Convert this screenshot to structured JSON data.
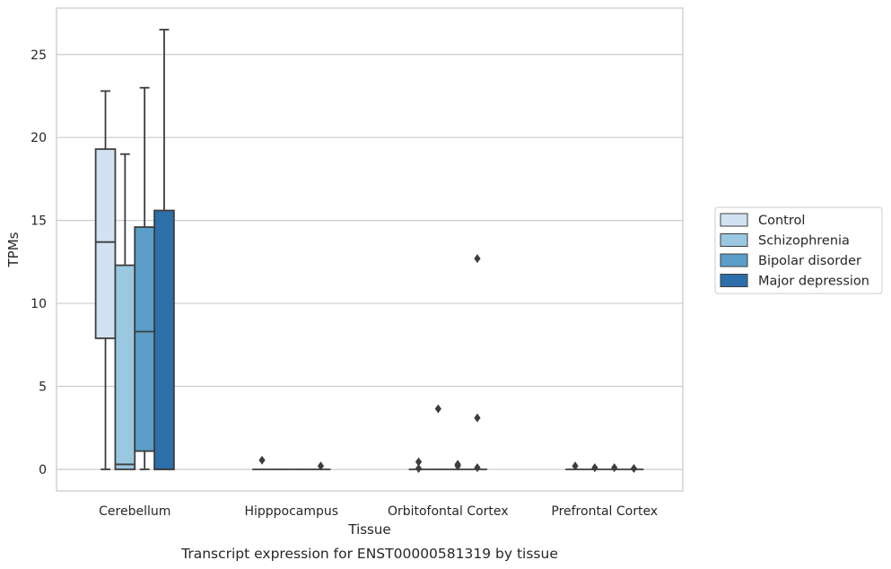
{
  "chart_data": {
    "type": "box",
    "caption": "Transcript expression for ENST00000581319 by tissue",
    "xlabel": "Tissue",
    "ylabel": "TPMs",
    "ylim": [
      -1.3,
      27.8
    ],
    "yticks": [
      0,
      5,
      10,
      15,
      20,
      25
    ],
    "grid": "horizontal",
    "legend_position": "right",
    "categories": [
      "Cerebellum",
      "Hipppocampus",
      "Orbitofontal Cortex",
      "Prefrontal Cortex"
    ],
    "series": [
      {
        "name": "Control",
        "color": "#d2e2f2",
        "boxes": [
          {
            "category": "Cerebellum",
            "whisker_low": 0.0,
            "q1": 7.9,
            "median": 13.7,
            "q3": 19.3,
            "whisker_high": 22.8,
            "outliers": []
          },
          {
            "category": "Hipppocampus",
            "whisker_low": 0.0,
            "q1": 0.0,
            "median": 0.0,
            "q3": 0.0,
            "whisker_high": 0.0,
            "outliers": [
              0.55
            ]
          },
          {
            "category": "Orbitofontal Cortex",
            "whisker_low": 0.0,
            "q1": 0.0,
            "median": 0.0,
            "q3": 0.0,
            "whisker_high": 0.0,
            "outliers": [
              0.45,
              0.05
            ]
          },
          {
            "category": "Prefrontal Cortex",
            "whisker_low": 0.0,
            "q1": 0.0,
            "median": 0.0,
            "q3": 0.0,
            "whisker_high": 0.0,
            "outliers": [
              0.2
            ]
          }
        ]
      },
      {
        "name": "Schizophrenia",
        "color": "#9ac8e0",
        "boxes": [
          {
            "category": "Cerebellum",
            "whisker_low": 0.0,
            "q1": 0.0,
            "median": 0.3,
            "q3": 12.3,
            "whisker_high": 19.0,
            "outliers": []
          },
          {
            "category": "Hipppocampus",
            "whisker_low": 0.0,
            "q1": 0.0,
            "median": 0.0,
            "q3": 0.0,
            "whisker_high": 0.0,
            "outliers": []
          },
          {
            "category": "Orbitofontal Cortex",
            "whisker_low": 0.0,
            "q1": 0.0,
            "median": 0.0,
            "q3": 0.0,
            "whisker_high": 0.0,
            "outliers": [
              3.65
            ]
          },
          {
            "category": "Prefrontal Cortex",
            "whisker_low": 0.0,
            "q1": 0.0,
            "median": 0.0,
            "q3": 0.0,
            "whisker_high": 0.0,
            "outliers": [
              0.1
            ]
          }
        ]
      },
      {
        "name": "Bipolar disorder",
        "color": "#5a9ec9",
        "boxes": [
          {
            "category": "Cerebellum",
            "whisker_low": 0.0,
            "q1": 1.1,
            "median": 8.3,
            "q3": 14.6,
            "whisker_high": 23.0,
            "outliers": []
          },
          {
            "category": "Hipppocampus",
            "whisker_low": 0.0,
            "q1": 0.0,
            "median": 0.0,
            "q3": 0.0,
            "whisker_high": 0.0,
            "outliers": []
          },
          {
            "category": "Orbitofontal Cortex",
            "whisker_low": 0.0,
            "q1": 0.0,
            "median": 0.0,
            "q3": 0.0,
            "whisker_high": 0.0,
            "outliers": [
              0.3,
              0.2
            ]
          },
          {
            "category": "Prefrontal Cortex",
            "whisker_low": 0.0,
            "q1": 0.0,
            "median": 0.0,
            "q3": 0.0,
            "whisker_high": 0.0,
            "outliers": [
              0.1
            ]
          }
        ]
      },
      {
        "name": "Major depression",
        "color": "#2c6fab",
        "boxes": [
          {
            "category": "Cerebellum",
            "whisker_low": 0.0,
            "q1": 0.0,
            "median": 0.0,
            "q3": 15.6,
            "whisker_high": 26.5,
            "outliers": []
          },
          {
            "category": "Hipppocampus",
            "whisker_low": 0.0,
            "q1": 0.0,
            "median": 0.0,
            "q3": 0.0,
            "whisker_high": 0.0,
            "outliers": [
              0.2
            ]
          },
          {
            "category": "Orbitofontal Cortex",
            "whisker_low": 0.0,
            "q1": 0.0,
            "median": 0.0,
            "q3": 0.0,
            "whisker_high": 0.0,
            "outliers": [
              12.7,
              3.1,
              0.1
            ]
          },
          {
            "category": "Prefrontal Cortex",
            "whisker_low": 0.0,
            "q1": 0.0,
            "median": 0.0,
            "q3": 0.0,
            "whisker_high": 0.0,
            "outliers": [
              0.05
            ]
          }
        ]
      }
    ]
  }
}
